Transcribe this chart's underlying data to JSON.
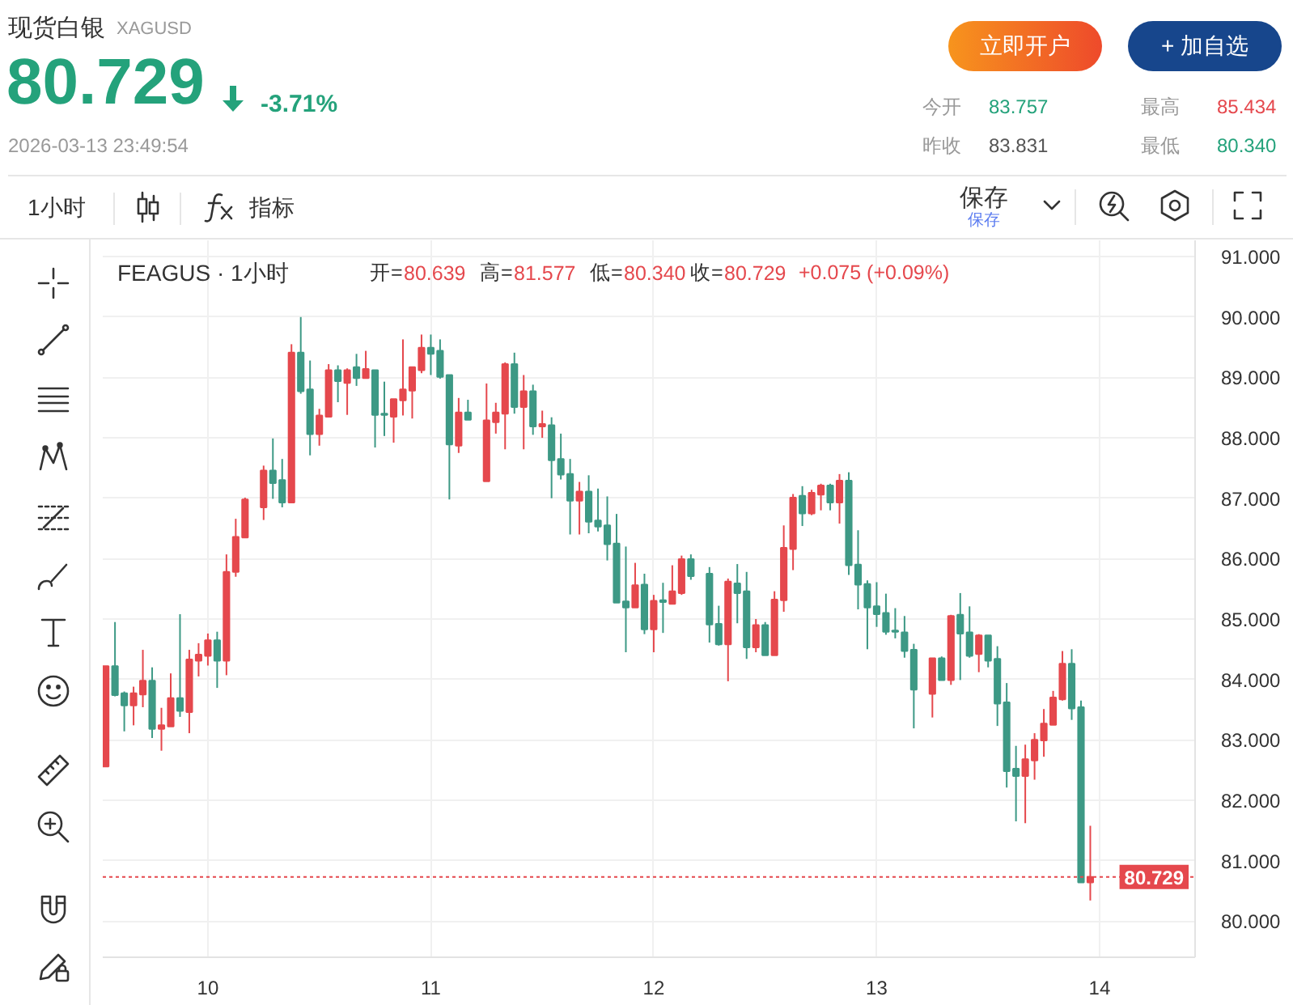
{
  "chart_data": {
    "type": "candlestick",
    "title": "现货白银",
    "subtitle": "XAGUSD",
    "x": [
      "2026-03-09T13:00",
      "2026-03-09T14:00",
      "2026-03-09T15:00",
      "2026-03-09T16:00",
      "2026-03-09T17:00",
      "2026-03-09T18:00",
      "2026-03-09T19:00",
      "2026-03-09T20:00",
      "2026-03-09T21:00",
      "2026-03-09T22:00",
      "2026-03-09T23:00",
      "2026-03-10T00:00",
      "2026-03-10T01:00",
      "2026-03-10T02:00",
      "2026-03-10T03:00",
      "2026-03-10T04:00",
      "2026-03-10T06:00",
      "2026-03-10T07:00",
      "2026-03-10T08:00",
      "2026-03-10T09:00",
      "2026-03-10T10:00",
      "2026-03-10T11:00",
      "2026-03-10T12:00",
      "2026-03-10T13:00",
      "2026-03-10T14:00",
      "2026-03-10T15:00",
      "2026-03-10T16:00",
      "2026-03-10T17:00",
      "2026-03-10T18:00",
      "2026-03-10T19:00",
      "2026-03-10T20:00",
      "2026-03-10T21:00",
      "2026-03-10T22:00",
      "2026-03-10T23:00",
      "2026-03-11T00:00",
      "2026-03-11T01:00",
      "2026-03-11T02:00",
      "2026-03-11T03:00",
      "2026-03-11T04:00",
      "2026-03-11T06:00",
      "2026-03-11T07:00",
      "2026-03-11T08:00",
      "2026-03-11T09:00",
      "2026-03-11T10:00",
      "2026-03-11T11:00",
      "2026-03-11T12:00",
      "2026-03-11T13:00",
      "2026-03-11T14:00",
      "2026-03-11T15:00",
      "2026-03-11T16:00",
      "2026-03-11T17:00",
      "2026-03-11T18:00",
      "2026-03-11T19:00",
      "2026-03-11T20:00",
      "2026-03-11T21:00",
      "2026-03-11T22:00",
      "2026-03-11T23:00",
      "2026-03-12T00:00",
      "2026-03-12T01:00",
      "2026-03-12T02:00",
      "2026-03-12T03:00",
      "2026-03-12T04:00",
      "2026-03-12T06:00",
      "2026-03-12T07:00",
      "2026-03-12T08:00",
      "2026-03-12T09:00",
      "2026-03-12T10:00",
      "2026-03-12T11:00",
      "2026-03-12T12:00",
      "2026-03-12T13:00",
      "2026-03-12T14:00",
      "2026-03-12T15:00",
      "2026-03-12T16:00",
      "2026-03-12T17:00",
      "2026-03-12T18:00",
      "2026-03-12T19:00",
      "2026-03-12T20:00",
      "2026-03-12T21:00",
      "2026-03-12T22:00",
      "2026-03-12T23:00",
      "2026-03-13T00:00",
      "2026-03-13T01:00",
      "2026-03-13T02:00",
      "2026-03-13T03:00",
      "2026-03-13T04:00",
      "2026-03-13T06:00",
      "2026-03-13T07:00",
      "2026-03-13T08:00",
      "2026-03-13T09:00",
      "2026-03-13T10:00",
      "2026-03-13T11:00",
      "2026-03-13T12:00",
      "2026-03-13T13:00",
      "2026-03-13T14:00",
      "2026-03-13T15:00",
      "2026-03-13T16:00",
      "2026-03-13T17:00",
      "2026-03-13T18:00",
      "2026-03-13T19:00",
      "2026-03-13T20:00",
      "2026-03-13T21:00",
      "2026-03-13T22:00",
      "2026-03-13T23:00"
    ],
    "ohlc": [
      [
        82.56,
        84.22,
        82.56,
        84.22
      ],
      [
        84.22,
        84.95,
        83.72,
        83.74
      ],
      [
        83.77,
        83.8,
        83.14,
        83.57
      ],
      [
        83.57,
        83.88,
        83.24,
        83.77
      ],
      [
        83.75,
        84.49,
        83.54,
        83.98
      ],
      [
        83.98,
        84.2,
        83.03,
        83.18
      ],
      [
        83.18,
        83.53,
        82.82,
        83.24
      ],
      [
        83.22,
        84.1,
        83.22,
        83.69
      ],
      [
        83.69,
        85.08,
        83.38,
        83.48
      ],
      [
        83.46,
        84.49,
        83.11,
        84.33
      ],
      [
        84.31,
        84.6,
        84.05,
        84.41
      ],
      [
        84.39,
        84.76,
        84.23,
        84.65
      ],
      [
        84.65,
        84.79,
        83.86,
        84.31
      ],
      [
        84.31,
        86.07,
        84.07,
        85.78
      ],
      [
        85.78,
        86.66,
        85.7,
        86.36
      ],
      [
        86.35,
        87.01,
        86.35,
        86.98
      ],
      [
        86.85,
        87.54,
        86.64,
        87.46
      ],
      [
        87.46,
        87.99,
        86.99,
        87.25
      ],
      [
        87.3,
        87.65,
        86.85,
        86.93
      ],
      [
        86.93,
        89.55,
        86.93,
        89.41
      ],
      [
        89.41,
        90.0,
        88.73,
        88.77
      ],
      [
        88.8,
        89.28,
        87.71,
        88.06
      ],
      [
        88.06,
        88.48,
        87.87,
        88.37
      ],
      [
        88.35,
        89.22,
        88.35,
        89.12
      ],
      [
        89.12,
        89.2,
        88.59,
        88.94
      ],
      [
        88.91,
        89.15,
        88.38,
        89.12
      ],
      [
        89.17,
        89.39,
        88.86,
        88.99
      ],
      [
        88.99,
        89.44,
        88.99,
        89.14
      ],
      [
        89.12,
        89.12,
        87.84,
        88.38
      ],
      [
        88.4,
        88.93,
        88.03,
        88.38
      ],
      [
        88.35,
        88.64,
        87.92,
        88.64
      ],
      [
        88.62,
        89.63,
        88.37,
        88.8
      ],
      [
        88.78,
        89.17,
        88.32,
        89.17
      ],
      [
        89.12,
        89.71,
        89.07,
        89.49
      ],
      [
        89.49,
        89.71,
        89.04,
        89.39
      ],
      [
        89.44,
        89.63,
        88.98,
        89.01
      ],
      [
        89.04,
        89.04,
        86.98,
        87.89
      ],
      [
        87.87,
        88.66,
        87.75,
        88.42
      ],
      [
        88.42,
        88.63,
        88.3,
        88.3
      ],
      [
        87.28,
        88.9,
        87.28,
        88.29
      ],
      [
        88.26,
        88.58,
        88.07,
        88.42
      ],
      [
        88.4,
        89.25,
        87.81,
        89.22
      ],
      [
        89.22,
        89.41,
        88.4,
        88.51
      ],
      [
        88.51,
        89.04,
        87.81,
        88.77
      ],
      [
        88.77,
        88.88,
        88.05,
        88.19
      ],
      [
        88.19,
        88.45,
        88.0,
        88.23
      ],
      [
        88.21,
        88.34,
        87.0,
        87.63
      ],
      [
        87.65,
        88.07,
        87.31,
        87.39
      ],
      [
        87.4,
        87.65,
        86.4,
        86.96
      ],
      [
        86.96,
        87.27,
        86.4,
        87.11
      ],
      [
        87.11,
        87.38,
        86.42,
        86.61
      ],
      [
        86.63,
        87.16,
        86.45,
        86.53
      ],
      [
        86.55,
        87.03,
        85.97,
        86.24
      ],
      [
        86.25,
        86.74,
        85.27,
        85.27
      ],
      [
        85.29,
        86.2,
        84.45,
        85.19
      ],
      [
        85.19,
        85.93,
        85.19,
        85.56
      ],
      [
        85.57,
        85.75,
        84.75,
        84.83
      ],
      [
        84.83,
        85.4,
        84.45,
        85.3
      ],
      [
        85.31,
        85.6,
        84.77,
        85.28
      ],
      [
        85.25,
        85.89,
        85.25,
        85.46
      ],
      [
        85.43,
        86.05,
        85.4,
        85.99
      ],
      [
        85.99,
        86.07,
        85.65,
        85.71
      ],
      [
        85.75,
        85.86,
        84.61,
        84.91
      ],
      [
        84.92,
        85.22,
        84.56,
        84.58
      ],
      [
        84.58,
        85.67,
        83.97,
        85.62
      ],
      [
        85.59,
        85.91,
        84.93,
        85.43
      ],
      [
        85.46,
        85.78,
        84.34,
        84.53
      ],
      [
        84.53,
        85.0,
        84.45,
        84.9
      ],
      [
        84.9,
        84.95,
        84.4,
        84.4
      ],
      [
        84.4,
        85.46,
        84.4,
        85.32
      ],
      [
        85.31,
        86.55,
        85.12,
        86.18
      ],
      [
        86.16,
        87.07,
        85.81,
        87.01
      ],
      [
        87.04,
        87.2,
        86.54,
        86.75
      ],
      [
        86.75,
        87.14,
        86.72,
        87.09
      ],
      [
        87.06,
        87.24,
        86.8,
        87.21
      ],
      [
        87.21,
        87.24,
        86.8,
        86.93
      ],
      [
        86.93,
        87.4,
        86.58,
        87.29
      ],
      [
        87.29,
        87.43,
        85.73,
        85.89
      ],
      [
        85.9,
        86.47,
        85.16,
        85.57
      ],
      [
        85.58,
        85.64,
        84.5,
        85.19
      ],
      [
        85.21,
        85.61,
        84.87,
        85.08
      ],
      [
        85.1,
        85.42,
        84.74,
        84.79
      ],
      [
        84.81,
        85.18,
        84.68,
        84.79
      ],
      [
        84.78,
        85.05,
        84.36,
        84.47
      ],
      [
        84.49,
        84.59,
        83.19,
        83.83
      ],
      [
        83.76,
        84.35,
        83.37,
        84.35
      ],
      [
        84.35,
        84.38,
        83.99,
        83.99
      ],
      [
        83.99,
        85.07,
        83.91,
        85.05
      ],
      [
        85.07,
        85.43,
        83.99,
        84.76
      ],
      [
        84.78,
        85.21,
        84.36,
        84.39
      ],
      [
        84.42,
        84.75,
        84.12,
        84.73
      ],
      [
        84.73,
        84.73,
        84.2,
        84.31
      ],
      [
        84.34,
        84.55,
        83.23,
        83.6
      ],
      [
        83.62,
        83.94,
        82.21,
        82.48
      ],
      [
        82.52,
        82.9,
        81.65,
        82.4
      ],
      [
        82.4,
        82.92,
        81.62,
        82.68
      ],
      [
        82.66,
        83.11,
        82.34,
        83.0
      ],
      [
        82.99,
        83.51,
        82.72,
        83.27
      ],
      [
        83.25,
        83.81,
        83.25,
        83.7
      ],
      [
        83.67,
        84.47,
        83.65,
        84.26
      ],
      [
        84.26,
        84.5,
        83.33,
        83.52
      ],
      [
        83.54,
        83.65,
        80.64,
        80.64
      ],
      [
        80.639,
        81.577,
        80.34,
        80.729
      ]
    ],
    "colors": [
      "#e5484d",
      "#3d9985",
      "#3d9985",
      "#e5484d",
      "#e5484d",
      "#3d9985",
      "#e5484d",
      "#e5484d",
      "#3d9985",
      "#e5484d",
      "#e5484d",
      "#e5484d",
      "#3d9985",
      "#e5484d",
      "#e5484d",
      "#e5484d",
      "#e5484d",
      "#3d9985",
      "#3d9985",
      "#e5484d",
      "#3d9985",
      "#3d9985",
      "#e5484d",
      "#e5484d",
      "#3d9985",
      "#e5484d",
      "#3d9985",
      "#e5484d",
      "#3d9985",
      "#3d9985",
      "#e5484d",
      "#e5484d",
      "#e5484d",
      "#e5484d",
      "#3d9985",
      "#3d9985",
      "#3d9985",
      "#e5484d",
      "#3d9985",
      "#e5484d",
      "#e5484d",
      "#e5484d",
      "#3d9985",
      "#e5484d",
      "#3d9985",
      "#e5484d",
      "#3d9985",
      "#3d9985",
      "#3d9985",
      "#e5484d",
      "#3d9985",
      "#3d9985",
      "#3d9985",
      "#3d9985",
      "#3d9985",
      "#e5484d",
      "#3d9985",
      "#e5484d",
      "#3d9985",
      "#e5484d",
      "#e5484d",
      "#3d9985",
      "#3d9985",
      "#3d9985",
      "#e5484d",
      "#3d9985",
      "#3d9985",
      "#e5484d",
      "#3d9985",
      "#e5484d",
      "#e5484d",
      "#e5484d",
      "#3d9985",
      "#e5484d",
      "#e5484d",
      "#3d9985",
      "#e5484d",
      "#3d9985",
      "#3d9985",
      "#3d9985",
      "#3d9985",
      "#3d9985",
      "#3d9985",
      "#3d9985",
      "#3d9985",
      "#e5484d",
      "#3d9985",
      "#e5484d",
      "#3d9985",
      "#3d9985",
      "#e5484d",
      "#3d9985",
      "#3d9985",
      "#3d9985",
      "#3d9985",
      "#e5484d",
      "#e5484d",
      "#e5484d",
      "#e5484d",
      "#e5484d",
      "#3d9985",
      "#3d9985",
      "#e5484d"
    ],
    "xlim": [
      "2026-03-09T12:41",
      "2026-03-14T10:17"
    ],
    "xticks": [
      {
        "value": "2026-03-10",
        "label": "10"
      },
      {
        "value": "2026-03-11",
        "label": "11"
      },
      {
        "value": "2026-03-12",
        "label": "12"
      },
      {
        "value": "2026-03-13",
        "label": "13"
      },
      {
        "value": "2026-03-14",
        "label": "14"
      }
    ],
    "ylim": [
      79.4,
      91.27
    ],
    "yticks": [
      {
        "value": 80,
        "label": "80.000"
      },
      {
        "value": 81,
        "label": "81.000"
      },
      {
        "value": 82,
        "label": "82.000"
      },
      {
        "value": 83,
        "label": "83.000"
      },
      {
        "value": 84,
        "label": "84.000"
      },
      {
        "value": 85,
        "label": "85.000"
      },
      {
        "value": 86,
        "label": "86.000"
      },
      {
        "value": 87,
        "label": "87.000"
      },
      {
        "value": 88,
        "label": "88.000"
      },
      {
        "value": 89,
        "label": "89.000"
      },
      {
        "value": 90,
        "label": "90.000"
      },
      {
        "value": 91,
        "label": "91.000"
      }
    ],
    "grid": true,
    "ref_lines": [
      {
        "axis": "y",
        "value": 80.729,
        "label": "80.729",
        "color": "#e5484d",
        "line_style": "dotted"
      }
    ],
    "annotations": [
      "80.729",
      "-3.71%",
      "2026-03-13 23:49:54",
      "立即开户",
      "+ 加自选",
      "今开",
      "83.757",
      "最高",
      "85.434",
      "昨收",
      "83.831",
      "最低",
      "80.340",
      "1小时",
      "指标",
      "保存",
      "保存",
      "FEAGUS · 1小时",
      "开=",
      "80.639",
      "高=",
      "81.577",
      "低=",
      "80.340",
      "收=",
      "80.729",
      "+0.075 (+0.09%)"
    ]
  }
}
